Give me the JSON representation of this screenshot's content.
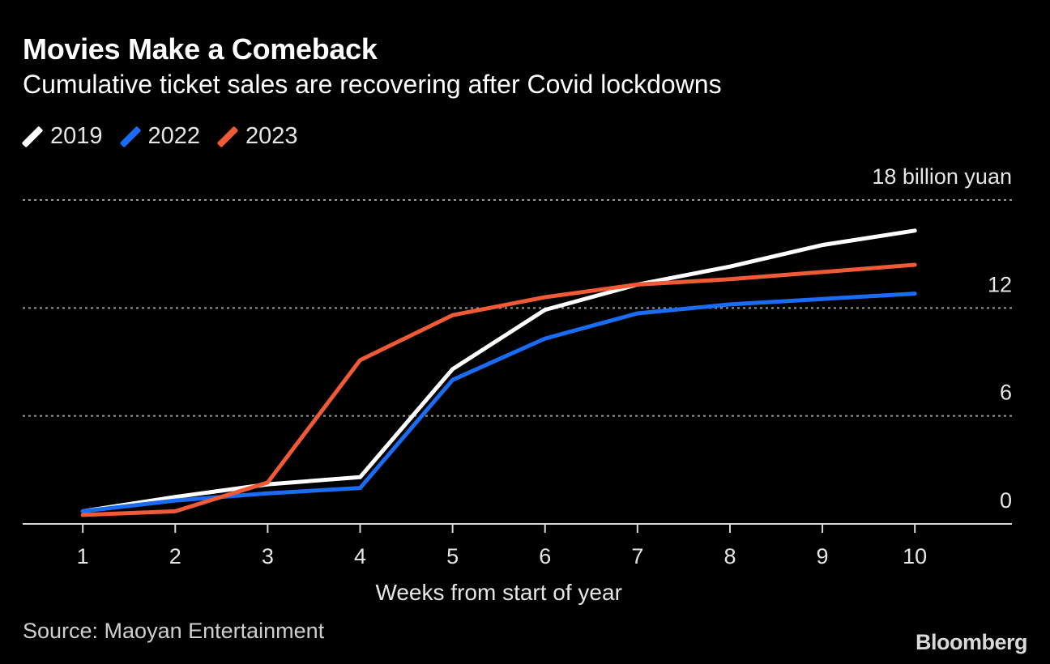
{
  "header": {
    "title": "Movies Make a Comeback",
    "subtitle": "Cumulative ticket sales are recovering after Covid lockdowns"
  },
  "footer": {
    "source": "Source: Maoyan Entertainment",
    "brand": "Bloomberg"
  },
  "colors": {
    "background": "#000000",
    "2019": "#ffffff",
    "2022": "#1a6cf5",
    "2023": "#f05a35",
    "grid": "#9a9a9a",
    "text": "#e6e6e6"
  },
  "chart_data": {
    "type": "line",
    "title": "Movies Make a Comeback",
    "subtitle": "Cumulative ticket sales are recovering after Covid lockdowns",
    "xlabel": "Weeks from start of year",
    "ylabel": "",
    "y_unit_label": "18 billion yuan",
    "x": [
      1,
      2,
      3,
      4,
      5,
      6,
      7,
      8,
      9,
      10
    ],
    "x_ticks": [
      "1",
      "2",
      "3",
      "4",
      "5",
      "6",
      "7",
      "8",
      "9",
      "10"
    ],
    "y_ticks": [
      "0",
      "6",
      "12"
    ],
    "xlim": [
      0.35,
      11.05
    ],
    "ylim": [
      0,
      18
    ],
    "grid": true,
    "legend_position": "top-left",
    "series": [
      {
        "name": "2019",
        "color": "#ffffff",
        "values": [
          0.7,
          1.5,
          2.2,
          2.6,
          8.6,
          11.9,
          13.3,
          14.3,
          15.5,
          16.3
        ]
      },
      {
        "name": "2022",
        "color": "#1a6cf5",
        "values": [
          0.7,
          1.3,
          1.7,
          2.0,
          8.0,
          10.3,
          11.7,
          12.2,
          12.5,
          12.8
        ]
      },
      {
        "name": "2023",
        "color": "#f05a35",
        "values": [
          0.5,
          0.7,
          2.3,
          9.1,
          11.6,
          12.6,
          13.3,
          13.6,
          14.0,
          14.4
        ]
      }
    ]
  }
}
